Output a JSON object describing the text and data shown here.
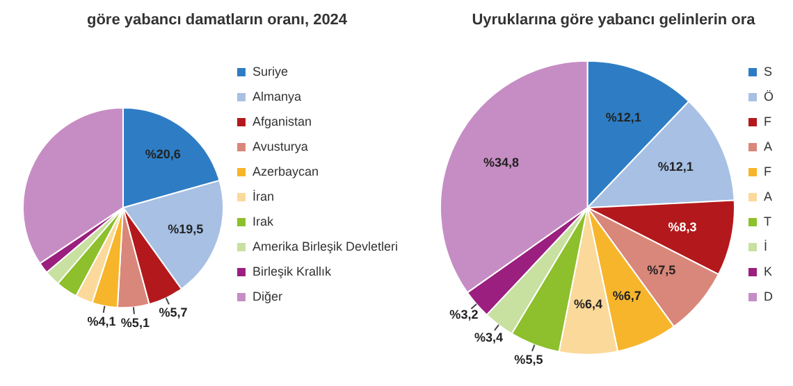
{
  "chart_data": [
    {
      "type": "pie",
      "title": "göre yabancı damatların oranı, 2024",
      "categories": [
        "Suriye",
        "Almanya",
        "Afganistan",
        "Avusturya",
        "Azerbaycan",
        "İran",
        "Irak",
        "Amerika Birleşik Devletleri",
        "Birleşik Krallık",
        "Diğer"
      ],
      "values": [
        20.6,
        19.5,
        5.7,
        5.1,
        4.1,
        2.8,
        3.5,
        2.5,
        1.8,
        34.4
      ],
      "value_labels": [
        "%20,6",
        "%19,5",
        "%5,7",
        "%5,1",
        "%4,1",
        null,
        null,
        null,
        null,
        null
      ],
      "colors": [
        "#2e7dc4",
        "#a7c0e4",
        "#b3191c",
        "#d9877a",
        "#f7b52c",
        "#fbd99a",
        "#8ebf2c",
        "#c8e0a0",
        "#9b1f7e",
        "#c68dc4"
      ],
      "legend": "right"
    },
    {
      "type": "pie",
      "title": "Uyruklarına göre yabancı gelinlerin ora",
      "categories": [
        "S",
        "Ö",
        "F",
        "A",
        "F",
        "A",
        "T",
        "İ",
        "K",
        "D"
      ],
      "values": [
        12.1,
        12.1,
        8.3,
        7.5,
        6.7,
        6.4,
        5.5,
        3.4,
        3.2,
        34.8
      ],
      "value_labels": [
        "%12,1",
        "%12,1",
        "%8,3",
        "%7,5",
        "%6,7",
        "%6,4",
        "%5,5",
        "%3,4",
        "%3,2",
        "%34,8"
      ],
      "colors": [
        "#2e7dc4",
        "#a7c0e4",
        "#b3191c",
        "#d9877a",
        "#f7b52c",
        "#fbd99a",
        "#8ebf2c",
        "#c8e0a0",
        "#9b1f7e",
        "#c68dc4"
      ],
      "legend": "right"
    }
  ]
}
